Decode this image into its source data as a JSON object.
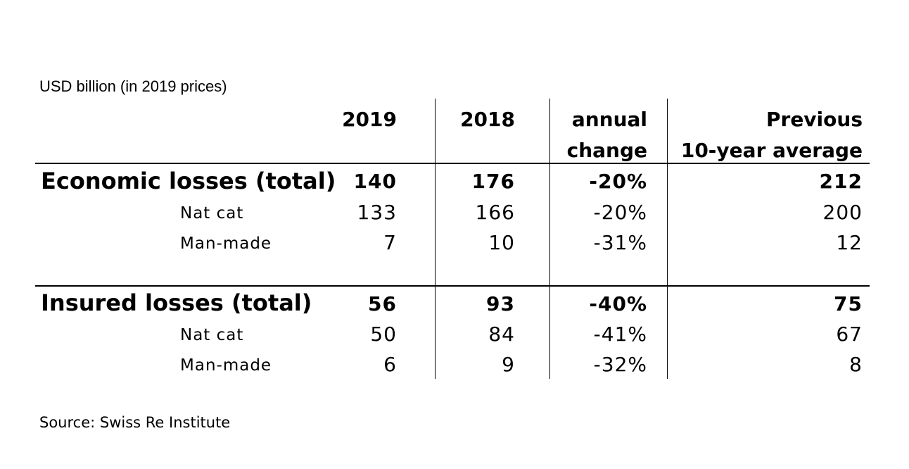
{
  "chart_data": {
    "type": "table",
    "unit_label": "USD billion (in 2019 prices)",
    "columns": [
      "2019",
      "2018",
      "annual change",
      "Previous 10-year average"
    ],
    "column_header_lines": [
      [
        "2019"
      ],
      [
        "2018"
      ],
      [
        "annual",
        "change"
      ],
      [
        "Previous",
        "10-year average"
      ]
    ],
    "rows": [
      {
        "label": "Economic losses (total)",
        "level": "total",
        "values": [
          "140",
          "176",
          "-20%",
          "212"
        ]
      },
      {
        "label": "Nat cat",
        "level": "sub",
        "values": [
          "133",
          "166",
          "-20%",
          "200"
        ]
      },
      {
        "label": "Man-made",
        "level": "sub",
        "values": [
          "7",
          "10",
          "-31%",
          "12"
        ]
      },
      {
        "label": "Insured losses (total)",
        "level": "total",
        "values": [
          "56",
          "93",
          "-40%",
          "75"
        ]
      },
      {
        "label": "Nat cat",
        "level": "sub",
        "values": [
          "50",
          "84",
          "-41%",
          "67"
        ]
      },
      {
        "label": "Man-made",
        "level": "sub",
        "values": [
          "6",
          "9",
          "-32%",
          "8"
        ]
      }
    ],
    "source": "Source: Swiss Re Institute"
  }
}
